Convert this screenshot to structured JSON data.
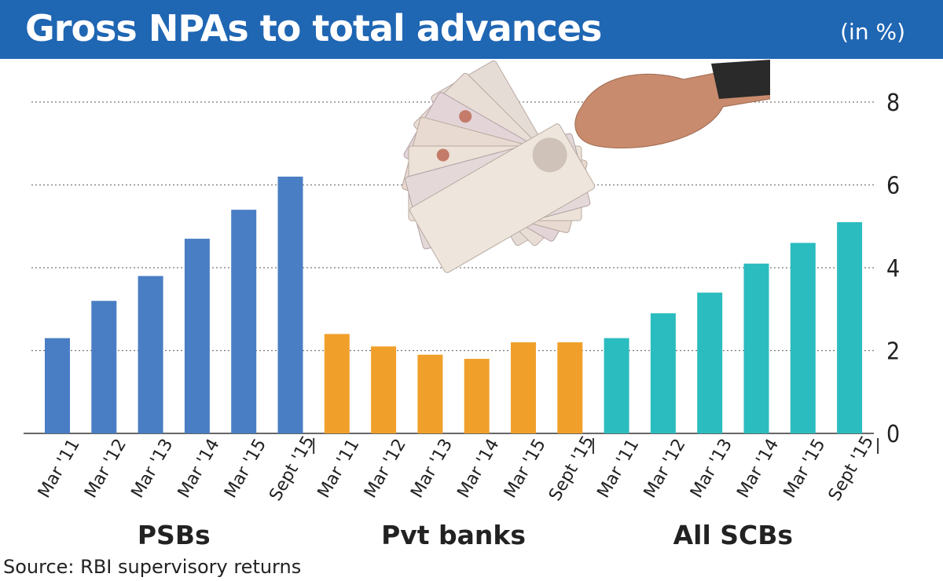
{
  "header": {
    "title": "Gross NPAs to total advances",
    "unit": "(in %)"
  },
  "source": "Source: RBI supervisory returns",
  "colors": {
    "header": "#1f66b3",
    "psbs": "#4a7ec4",
    "pvt": "#f0a02a",
    "scbs": "#2bbcbf"
  },
  "illustration": "hand-holding-rupee-notes",
  "chart_data": {
    "type": "bar",
    "ylim": [
      0,
      8
    ],
    "yticks": [
      0,
      2,
      4,
      6,
      8
    ],
    "grid": true,
    "categories": [
      "Mar '11",
      "Mar '12",
      "Mar '13",
      "Mar '14",
      "Mar '15",
      "Sept '15"
    ],
    "groups": [
      {
        "name": "PSBs",
        "color": "#4a7ec4",
        "values": [
          2.3,
          3.2,
          3.8,
          4.7,
          5.4,
          6.2
        ]
      },
      {
        "name": "Pvt banks",
        "color": "#f0a02a",
        "values": [
          2.4,
          2.1,
          1.9,
          1.8,
          2.2,
          2.2
        ]
      },
      {
        "name": "All SCBs",
        "color": "#2bbcbf",
        "values": [
          2.3,
          2.9,
          3.4,
          4.1,
          4.6,
          5.1
        ]
      }
    ]
  }
}
